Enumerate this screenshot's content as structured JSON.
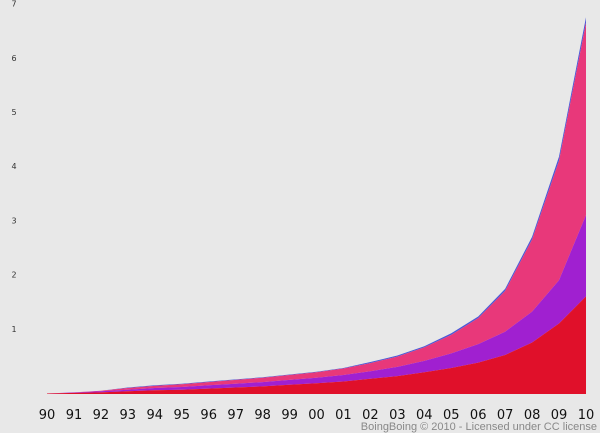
{
  "chart_data": {
    "type": "area",
    "stacked": true,
    "categories": [
      "90",
      "91",
      "92",
      "93",
      "94",
      "95",
      "96",
      "97",
      "98",
      "99",
      "00",
      "01",
      "02",
      "03",
      "04",
      "05",
      "06",
      "07",
      "08",
      "09",
      "10"
    ],
    "y_ticks": [
      "1",
      "2",
      "3",
      "4",
      "5",
      "6",
      "7"
    ],
    "ylim": [
      0,
      7.4
    ],
    "grid": false,
    "legend": "none",
    "credit": "BoingBoing © 2010 - Licensed under CC license",
    "series": [
      {
        "color": "#e0102a",
        "values": [
          0.01,
          0.02,
          0.03,
          0.05,
          0.07,
          0.08,
          0.1,
          0.12,
          0.14,
          0.17,
          0.2,
          0.23,
          0.28,
          0.33,
          0.4,
          0.48,
          0.58,
          0.72,
          0.95,
          1.3,
          1.8
        ]
      },
      {
        "color": "#a020d0",
        "values": [
          0.0,
          0.01,
          0.02,
          0.03,
          0.04,
          0.05,
          0.06,
          0.07,
          0.08,
          0.09,
          0.1,
          0.12,
          0.14,
          0.17,
          0.21,
          0.27,
          0.34,
          0.43,
          0.57,
          0.8,
          1.5
        ]
      },
      {
        "color": "#e8387a",
        "values": [
          0.0,
          0.0,
          0.01,
          0.03,
          0.04,
          0.05,
          0.06,
          0.07,
          0.08,
          0.09,
          0.1,
          0.12,
          0.15,
          0.19,
          0.25,
          0.34,
          0.48,
          0.75,
          1.33,
          2.2,
          3.55
        ]
      },
      {
        "color": "#4a58d8",
        "values": [
          0.0,
          0.0,
          0.0,
          0.01,
          0.01,
          0.01,
          0.01,
          0.01,
          0.01,
          0.01,
          0.01,
          0.01,
          0.02,
          0.02,
          0.02,
          0.03,
          0.03,
          0.04,
          0.05,
          0.08,
          0.1
        ]
      }
    ]
  }
}
